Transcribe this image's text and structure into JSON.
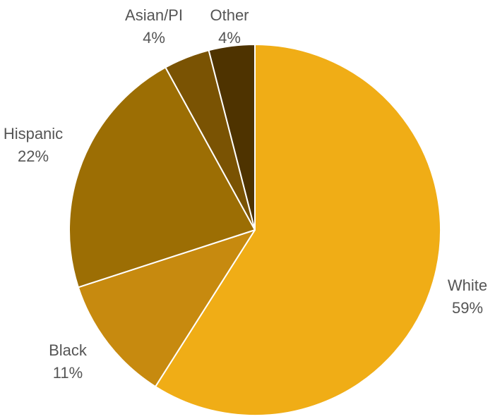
{
  "chart_data": {
    "type": "pie",
    "title": "",
    "legend": "none",
    "slices": [
      {
        "name": "White",
        "value": 59,
        "value_label": "59%",
        "color": "#F0AD16"
      },
      {
        "name": "Black",
        "value": 11,
        "value_label": "11%",
        "color": "#C78A0F"
      },
      {
        "name": "Hispanic",
        "value": 22,
        "value_label": "22%",
        "color": "#9C6E04"
      },
      {
        "name": "Asian/PI",
        "value": 4,
        "value_label": "4%",
        "color": "#7A5303"
      },
      {
        "name": "Other",
        "value": 4,
        "value_label": "4%",
        "color": "#4E3300"
      }
    ]
  }
}
